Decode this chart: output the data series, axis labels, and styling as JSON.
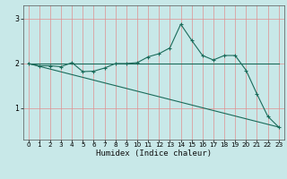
{
  "xlabel": "Humidex (Indice chaleur)",
  "background_color": "#c8e8e8",
  "line_color": "#1a6b5a",
  "xlim": [
    -0.5,
    23.5
  ],
  "ylim": [
    0.3,
    3.3
  ],
  "yticks": [
    1,
    2,
    3
  ],
  "xticks": [
    0,
    1,
    2,
    3,
    4,
    5,
    6,
    7,
    8,
    9,
    10,
    11,
    12,
    13,
    14,
    15,
    16,
    17,
    18,
    19,
    20,
    21,
    22,
    23
  ],
  "line1_x": [
    0,
    1,
    2,
    3,
    4,
    5,
    6,
    7,
    8,
    9,
    10,
    11,
    12,
    13,
    14,
    15,
    16,
    17,
    18,
    19,
    20,
    21,
    22,
    23
  ],
  "line1_y": [
    2.0,
    2.0,
    2.0,
    2.0,
    2.0,
    2.0,
    2.0,
    2.0,
    2.0,
    2.0,
    2.0,
    2.0,
    2.0,
    2.0,
    2.0,
    2.0,
    2.0,
    2.0,
    2.0,
    2.0,
    2.0,
    2.0,
    2.0,
    2.0
  ],
  "line2_x": [
    0,
    1,
    2,
    3,
    4,
    5,
    6,
    7,
    8,
    9,
    10,
    11,
    12,
    13,
    14,
    15,
    16,
    17,
    18,
    19,
    20,
    21,
    22,
    23
  ],
  "line2_y": [
    2.0,
    1.95,
    1.95,
    1.93,
    2.02,
    1.82,
    1.83,
    1.9,
    2.0,
    2.0,
    2.02,
    2.15,
    2.22,
    2.35,
    2.88,
    2.52,
    2.18,
    2.08,
    2.18,
    2.18,
    1.85,
    1.32,
    0.82,
    0.58
  ],
  "line3_x": [
    0,
    23
  ],
  "line3_y": [
    2.0,
    0.58
  ],
  "xlabel_fontsize": 6.5,
  "tick_fontsize": 5.2
}
